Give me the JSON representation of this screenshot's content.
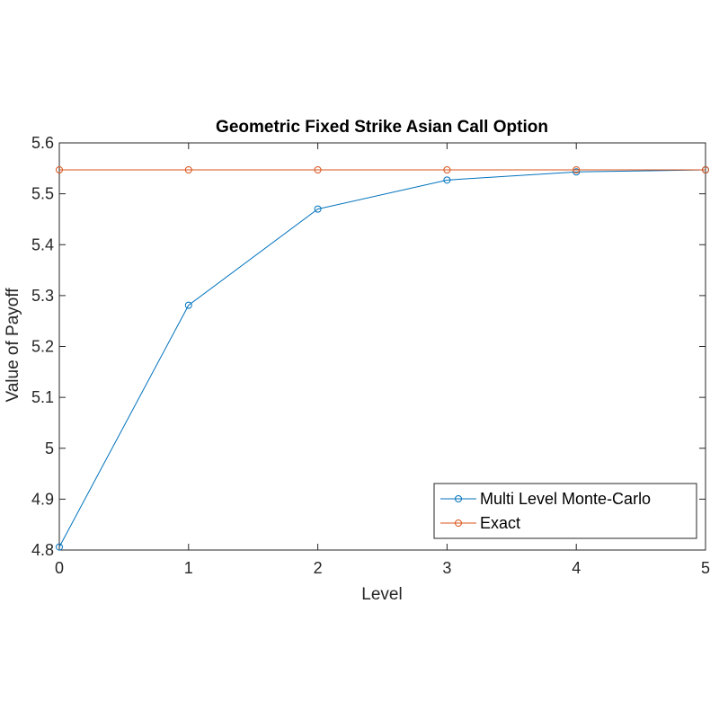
{
  "chart_data": {
    "type": "line",
    "title": "Geometric Fixed Strike Asian Call Option",
    "xlabel": "Level",
    "ylabel": "Value of Payoff",
    "xlim": [
      0,
      5
    ],
    "ylim": [
      4.8,
      5.6
    ],
    "xticks": [
      "0",
      "1",
      "2",
      "3",
      "4",
      "5"
    ],
    "yticks": [
      "4.8",
      "4.9",
      "5",
      "5.1",
      "5.2",
      "5.3",
      "5.4",
      "5.5",
      "5.6"
    ],
    "grid": false,
    "legend_position": "bottom-right",
    "x": [
      0,
      1,
      2,
      3,
      4,
      5
    ],
    "series": [
      {
        "name": "Multi Level Monte-Carlo",
        "color": "#0072BD",
        "marker": "circle",
        "values": [
          4.806,
          5.281,
          5.47,
          5.527,
          5.543,
          5.547
        ]
      },
      {
        "name": "Exact",
        "color": "#D95319",
        "marker": "circle",
        "values": [
          5.547,
          5.547,
          5.547,
          5.547,
          5.547,
          5.547
        ]
      }
    ]
  }
}
